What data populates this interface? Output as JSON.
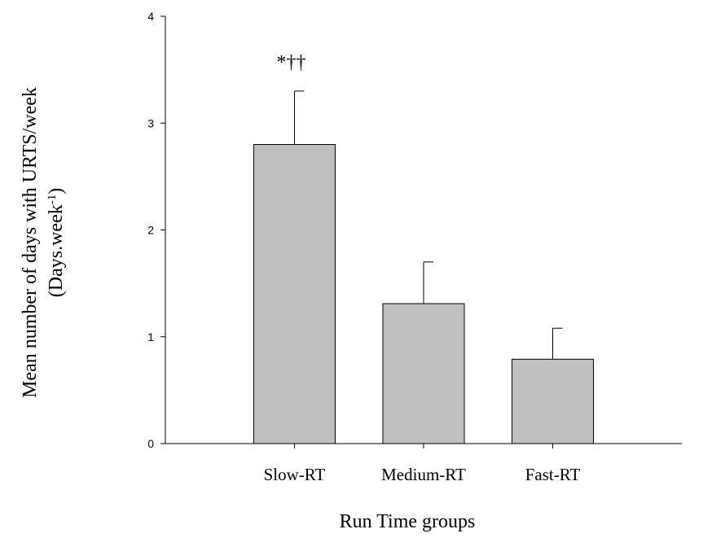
{
  "chart_data": {
    "type": "bar",
    "title": "",
    "categories": [
      "Slow-RT",
      "Medium-RT",
      "Fast-RT"
    ],
    "values": [
      2.8,
      1.31,
      0.79
    ],
    "errors": [
      0.5,
      0.39,
      0.29
    ],
    "annotations": [
      {
        "category": "Slow-RT",
        "text": "*††"
      }
    ],
    "xlabel": "Run Time groups",
    "ylabel_line1": "Mean number of days with URTS/week",
    "ylabel_line2_prefix": "(Days.week",
    "ylabel_line2_sup": "-1",
    "ylabel_line2_suffix": ")",
    "ylim": [
      0,
      4
    ],
    "yticks": [
      0,
      1,
      2,
      3,
      4
    ],
    "bar_color": "#c0c0c0",
    "grid": false
  }
}
